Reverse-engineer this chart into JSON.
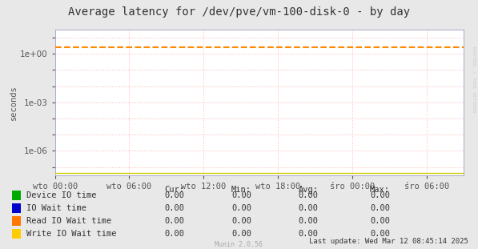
{
  "title": "Average latency for /dev/pve/vm-100-disk-0 - by day",
  "ylabel": "seconds",
  "background_color": "#e8e8e8",
  "plot_bg_color": "#ffffff",
  "grid_color_minor": "#ffcccc",
  "grid_color_major": "#ffaaaa",
  "x_tick_labels": [
    "wto 00:00",
    "wto 06:00",
    "wto 12:00",
    "wto 18:00",
    "śro 00:00",
    "śro 06:00"
  ],
  "x_tick_positions": [
    0,
    6,
    12,
    18,
    24,
    30
  ],
  "x_range": [
    0,
    33
  ],
  "ylim_bottom": 3e-08,
  "ylim_top": 30,
  "dashed_line_y": 2.5,
  "dashed_line_color": "#ff8800",
  "bottom_line_color": "#cccc00",
  "legend_items": [
    {
      "label": "Device IO time",
      "color": "#00aa00"
    },
    {
      "label": "IO Wait time",
      "color": "#0000cc"
    },
    {
      "label": "Read IO Wait time",
      "color": "#ff7700"
    },
    {
      "label": "Write IO Wait time",
      "color": "#ffcc00"
    }
  ],
  "table_headers": [
    "Cur:",
    "Min:",
    "Avg:",
    "Max:"
  ],
  "table_values": [
    [
      0.0,
      0.0,
      0.0,
      0.0
    ],
    [
      0.0,
      0.0,
      0.0,
      0.0
    ],
    [
      0.0,
      0.0,
      0.0,
      0.0
    ],
    [
      0.0,
      0.0,
      0.0,
      0.0
    ]
  ],
  "footer_text": "Last update: Wed Mar 12 08:45:14 2025",
  "munin_text": "Munin 2.0.56",
  "rrdtool_text": "RRDTOOL / TOBI OETIKER",
  "title_fontsize": 10,
  "axis_fontsize": 7.5,
  "legend_fontsize": 7.5,
  "table_fontsize": 7.5
}
